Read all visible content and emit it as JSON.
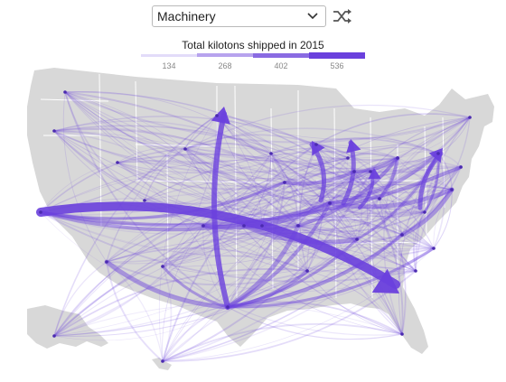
{
  "dropdown": {
    "selected": "Machinery"
  },
  "legend": {
    "title": "Total kilotons shipped in 2015",
    "ticks": [
      "134",
      "268",
      "402",
      "536"
    ],
    "colors": [
      "#e3dcf9",
      "#b7a3ee",
      "#8a6be2",
      "#6a40dd"
    ]
  },
  "colors": {
    "land": "#d8d8d8",
    "border": "#ffffff",
    "flow": "#6a40dd"
  },
  "icons": {
    "dropdown": "chevron-down-icon",
    "shuffle": "shuffle-icon"
  }
}
